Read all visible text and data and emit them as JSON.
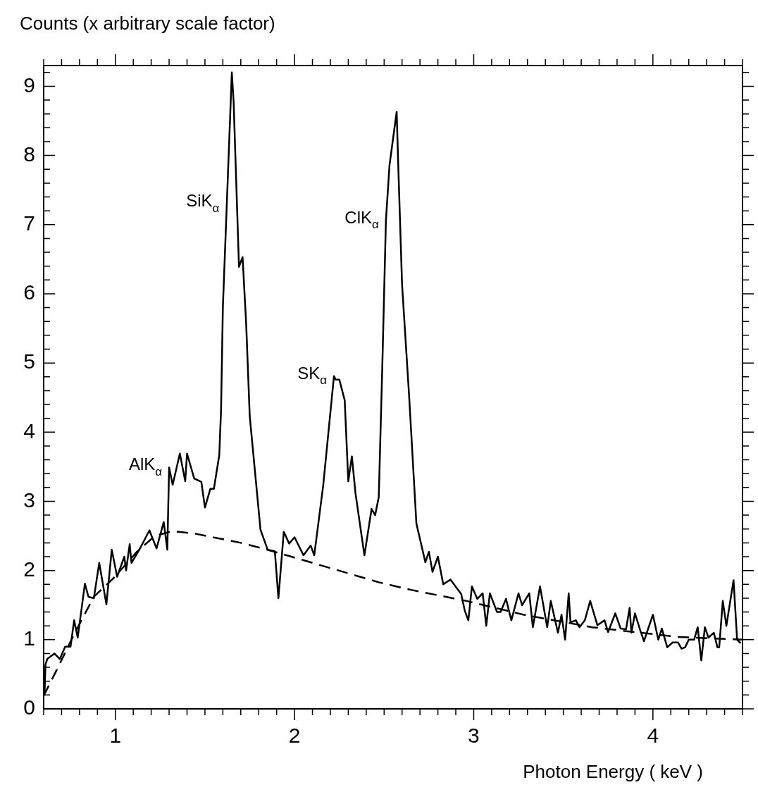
{
  "chart_data": {
    "type": "line",
    "xlabel": "Photon Energy ( keV )",
    "ylabel": "Counts (x arbitrary scale factor)",
    "xlim": [
      0.6,
      4.5
    ],
    "ylim": [
      0,
      9.3
    ],
    "grid": false,
    "legend": false,
    "marker": "none",
    "xticks": [
      {
        "value": 0.6,
        "label": null
      },
      {
        "value": 0.7,
        "label": null
      },
      {
        "value": 0.8,
        "label": null
      },
      {
        "value": 0.9,
        "label": null
      },
      1,
      {
        "value": 1.1,
        "label": null
      },
      {
        "value": 1.2,
        "label": null
      },
      {
        "value": 1.3,
        "label": null
      },
      {
        "value": 1.4,
        "label": null
      },
      {
        "value": 1.5,
        "label": null
      },
      {
        "value": 1.6,
        "label": null
      },
      {
        "value": 1.7,
        "label": null
      },
      {
        "value": 1.8,
        "label": null
      },
      {
        "value": 1.9,
        "label": null
      },
      2,
      {
        "value": 2.1,
        "label": null
      },
      {
        "value": 2.2,
        "label": null
      },
      {
        "value": 2.3,
        "label": null
      },
      {
        "value": 2.4,
        "label": null
      },
      {
        "value": 2.5,
        "label": null
      },
      {
        "value": 2.6,
        "label": null
      },
      {
        "value": 2.7,
        "label": null
      },
      {
        "value": 2.8,
        "label": null
      },
      {
        "value": 2.9,
        "label": null
      },
      3,
      {
        "value": 3.1,
        "label": null
      },
      {
        "value": 3.2,
        "label": null
      },
      {
        "value": 3.3,
        "label": null
      },
      {
        "value": 3.4,
        "label": null
      },
      {
        "value": 3.5,
        "label": null
      },
      {
        "value": 3.6,
        "label": null
      },
      {
        "value": 3.7,
        "label": null
      },
      {
        "value": 3.8,
        "label": null
      },
      {
        "value": 3.9,
        "label": null
      },
      4,
      {
        "value": 4.1,
        "label": null
      },
      {
        "value": 4.2,
        "label": null
      },
      {
        "value": 4.3,
        "label": null
      },
      {
        "value": 4.4,
        "label": null
      },
      {
        "value": 4.5,
        "label": null
      }
    ],
    "yticks": [
      0,
      {
        "value": 0.2,
        "label": null
      },
      {
        "value": 0.4,
        "label": null
      },
      {
        "value": 0.6,
        "label": null
      },
      {
        "value": 0.8,
        "label": null
      },
      1,
      {
        "value": 1.2,
        "label": null
      },
      {
        "value": 1.4,
        "label": null
      },
      {
        "value": 1.6,
        "label": null
      },
      {
        "value": 1.8,
        "label": null
      },
      2,
      {
        "value": 2.2,
        "label": null
      },
      {
        "value": 2.4,
        "label": null
      },
      {
        "value": 2.6,
        "label": null
      },
      {
        "value": 2.8,
        "label": null
      },
      3,
      {
        "value": 3.2,
        "label": null
      },
      {
        "value": 3.4,
        "label": null
      },
      {
        "value": 3.6,
        "label": null
      },
      {
        "value": 3.8,
        "label": null
      },
      4,
      {
        "value": 4.2,
        "label": null
      },
      {
        "value": 4.4,
        "label": null
      },
      {
        "value": 4.6,
        "label": null
      },
      {
        "value": 4.8,
        "label": null
      },
      5,
      {
        "value": 5.2,
        "label": null
      },
      {
        "value": 5.4,
        "label": null
      },
      {
        "value": 5.6,
        "label": null
      },
      {
        "value": 5.8,
        "label": null
      },
      6,
      {
        "value": 6.2,
        "label": null
      },
      {
        "value": 6.4,
        "label": null
      },
      {
        "value": 6.6,
        "label": null
      },
      {
        "value": 6.8,
        "label": null
      },
      7,
      {
        "value": 7.2,
        "label": null
      },
      {
        "value": 7.4,
        "label": null
      },
      {
        "value": 7.6,
        "label": null
      },
      {
        "value": 7.8,
        "label": null
      },
      8,
      {
        "value": 8.2,
        "label": null
      },
      {
        "value": 8.4,
        "label": null
      },
      {
        "value": 8.6,
        "label": null
      },
      {
        "value": 8.8,
        "label": null
      },
      9,
      {
        "value": 9.2,
        "label": null
      }
    ],
    "series": [
      {
        "color": "#000000",
        "line_style": "solid",
        "x": [
          0.605,
          0.61,
          0.62,
          0.66,
          0.69,
          0.72,
          0.75,
          0.77,
          0.79,
          0.83,
          0.85,
          0.88,
          0.91,
          0.92,
          0.95,
          0.98,
          1.01,
          1.05,
          1.06,
          1.08,
          1.09,
          1.14,
          1.19,
          1.23,
          1.27,
          1.29,
          1.3,
          1.32,
          1.36,
          1.39,
          1.4,
          1.44,
          1.48,
          1.5,
          1.53,
          1.55,
          1.58,
          1.59,
          1.6,
          1.65,
          1.66,
          1.69,
          1.71,
          1.73,
          1.75,
          1.81,
          1.85,
          1.89,
          1.91,
          1.94,
          1.97,
          2.0,
          2.05,
          2.09,
          2.11,
          2.16,
          2.22,
          2.23,
          2.25,
          2.28,
          2.3,
          2.32,
          2.34,
          2.39,
          2.43,
          2.45,
          2.47,
          2.49,
          2.51,
          2.53,
          2.57,
          2.58,
          2.6,
          2.64,
          2.68,
          2.73,
          2.75,
          2.77,
          2.8,
          2.83,
          2.87,
          2.93,
          2.95,
          2.97,
          2.99,
          3.02,
          3.05,
          3.07,
          3.09,
          3.13,
          3.15,
          3.18,
          3.21,
          3.25,
          3.27,
          3.31,
          3.33,
          3.37,
          3.41,
          3.43,
          3.47,
          3.49,
          3.51,
          3.53,
          3.54,
          3.57,
          3.59,
          3.62,
          3.65,
          3.69,
          3.73,
          3.75,
          3.79,
          3.82,
          3.85,
          3.87,
          3.88,
          3.9,
          3.93,
          3.95,
          4.0,
          4.03,
          4.05,
          4.08,
          4.11,
          4.14,
          4.16,
          4.18,
          4.2,
          4.23,
          4.25,
          4.27,
          4.29,
          4.31,
          4.34,
          4.36,
          4.37,
          4.39,
          4.41,
          4.45,
          4.47,
          4.49
        ],
        "values": [
          0.23,
          0.64,
          0.72,
          0.8,
          0.72,
          0.9,
          0.9,
          1.28,
          1.03,
          1.81,
          1.62,
          1.6,
          2.11,
          1.96,
          1.51,
          2.3,
          1.91,
          2.2,
          2.0,
          2.38,
          2.11,
          2.33,
          2.58,
          2.32,
          2.7,
          2.3,
          3.49,
          3.24,
          3.69,
          3.29,
          3.69,
          3.33,
          3.28,
          2.91,
          3.18,
          3.18,
          3.67,
          4.33,
          5.8,
          9.2,
          8.78,
          6.39,
          6.53,
          5.57,
          4.23,
          2.59,
          2.3,
          2.28,
          1.6,
          2.56,
          2.39,
          2.48,
          2.22,
          2.36,
          2.22,
          3.23,
          4.81,
          4.76,
          4.76,
          4.46,
          3.29,
          3.65,
          3.12,
          2.22,
          2.89,
          2.8,
          3.06,
          4.97,
          7.06,
          7.86,
          8.63,
          7.76,
          6.14,
          4.5,
          2.68,
          2.12,
          2.27,
          1.98,
          2.2,
          1.8,
          1.87,
          1.66,
          1.42,
          1.28,
          1.77,
          1.59,
          1.67,
          1.2,
          1.67,
          1.4,
          1.4,
          1.59,
          1.28,
          1.67,
          1.5,
          1.67,
          1.18,
          1.77,
          1.18,
          1.56,
          1.1,
          1.36,
          1.0,
          1.67,
          1.25,
          1.28,
          1.18,
          1.28,
          1.56,
          1.21,
          1.28,
          1.11,
          1.38,
          1.16,
          1.15,
          1.46,
          1.1,
          1.38,
          1.13,
          0.98,
          1.36,
          1.0,
          1.16,
          0.89,
          0.96,
          0.96,
          0.87,
          0.89,
          1.0,
          1.0,
          1.18,
          0.7,
          1.18,
          1.03,
          1.1,
          0.89,
          0.89,
          1.56,
          1.2,
          1.86,
          1.0,
          0.95
        ]
      },
      {
        "color": "#000000",
        "line_style": "dashed",
        "x": [
          0.6,
          0.68,
          0.77,
          0.88,
          0.99,
          1.12,
          1.22,
          1.32,
          1.45,
          1.7,
          1.85,
          2.47,
          2.65,
          2.96,
          3.28,
          3.66,
          4.14,
          4.5
        ],
        "values": [
          0.19,
          0.6,
          1.08,
          1.62,
          1.89,
          2.27,
          2.5,
          2.57,
          2.53,
          2.4,
          2.3,
          1.83,
          1.72,
          1.56,
          1.36,
          1.18,
          1.04,
          1.0
        ]
      }
    ],
    "annotations": [
      {
        "text": "AlK$_{α}$",
        "x": 1.3,
        "y": 3.49
      },
      {
        "text": "SiK$_{α}$",
        "x": 1.62,
        "y": 7.3
      },
      {
        "text": "SK$_{α}$",
        "x": 2.22,
        "y": 4.81
      },
      {
        "text": "ClK$_{α}$",
        "x": 2.51,
        "y": 7.06
      }
    ]
  }
}
